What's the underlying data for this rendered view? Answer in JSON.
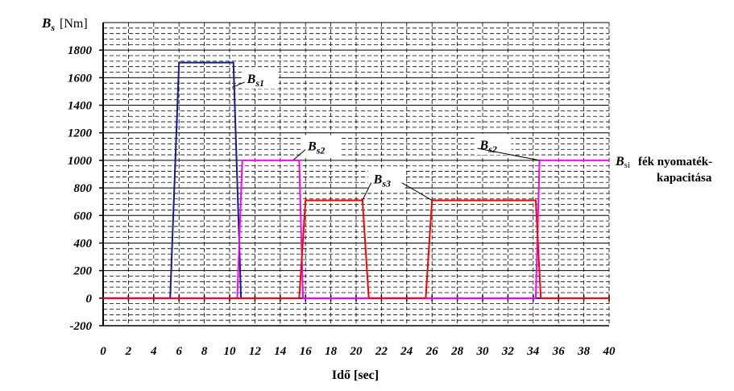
{
  "chart_data": {
    "type": "line",
    "title": "",
    "ylabel_symbol": "B",
    "ylabel_subscript": "s",
    "ylabel_unit": "[Nm]",
    "xlabel": "Idő [sec]",
    "xlim": [
      0,
      40
    ],
    "ylim": [
      -200,
      2000
    ],
    "x_ticks": [
      0,
      2,
      4,
      6,
      8,
      10,
      12,
      14,
      16,
      18,
      20,
      22,
      24,
      26,
      28,
      30,
      32,
      34,
      36,
      38,
      40
    ],
    "y_ticks": [
      -200,
      0,
      200,
      400,
      600,
      800,
      1000,
      1200,
      1400,
      1600,
      1800
    ],
    "grid": {
      "major": true,
      "minor_dashed": true
    },
    "series": [
      {
        "name": "Bs1",
        "color": "#1a1a8c",
        "x": [
          0,
          5.3,
          6.0,
          10.3,
          10.9,
          11.1,
          40
        ],
        "y": [
          0,
          0,
          1710,
          1710,
          0,
          0,
          0
        ]
      },
      {
        "name": "Bs2",
        "color": "#ff00ff",
        "x": [
          0,
          10.6,
          11.0,
          15.5,
          15.8,
          34.2,
          34.5,
          40
        ],
        "y": [
          0,
          0,
          1000,
          1000,
          0,
          0,
          1000,
          1000
        ]
      },
      {
        "name": "Bs3",
        "color": "#ff0000",
        "x": [
          0,
          15.5,
          16.0,
          20.5,
          21.0,
          25.5,
          26.0,
          34.2,
          34.6,
          40
        ],
        "y": [
          0,
          0,
          710,
          710,
          0,
          0,
          710,
          710,
          0,
          0
        ]
      }
    ],
    "callouts": [
      {
        "symbol": "B",
        "sub": "s1",
        "series": "Bs1",
        "text_pos": [
          12.4,
          1585
        ],
        "line_to": [
          10.2,
          1530
        ]
      },
      {
        "symbol": "B",
        "sub": "s2",
        "series": "Bs2",
        "text_pos": [
          17.2,
          1095
        ],
        "line_to": [
          15.0,
          1000
        ]
      },
      {
        "symbol": "B",
        "sub": "s3",
        "series": "Bs3",
        "text_pos": [
          22.4,
          855
        ],
        "line_to": [
          20.5,
          710
        ],
        "line_to_2": [
          26.0,
          710
        ]
      },
      {
        "symbol": "B",
        "sub": "s2",
        "series": "Bs2",
        "text_pos": [
          30.8,
          1105
        ],
        "line_to": [
          34.5,
          1000
        ]
      }
    ],
    "side_note": {
      "symbol": "B",
      "sub": "si",
      "line1": "fék nyomaték-",
      "line2": "kapacitása"
    }
  }
}
